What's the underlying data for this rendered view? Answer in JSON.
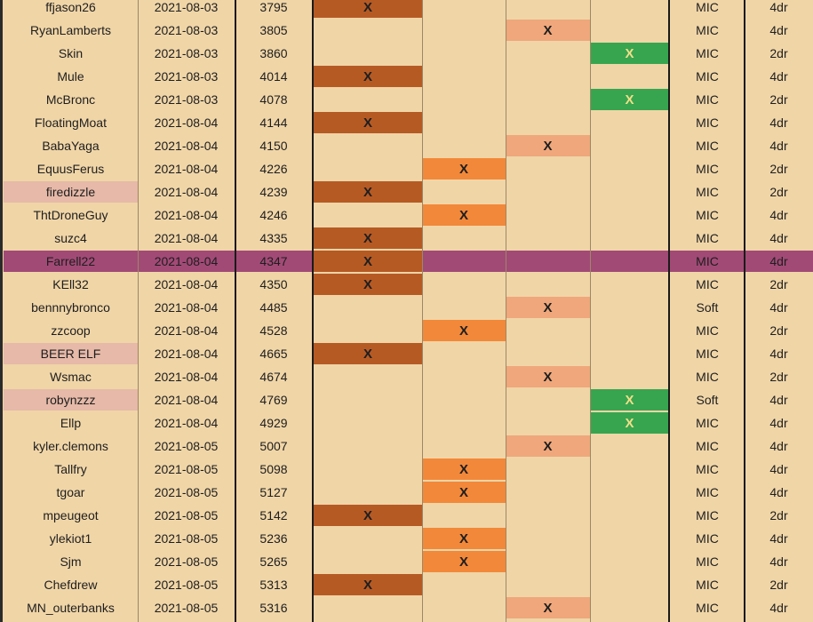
{
  "colors": {
    "row_bg": "#f0d5a7",
    "name_highlight": "#e6b9a8",
    "dark_orange": "#b65a24",
    "orange": "#f28839",
    "light_orange": "#efa77b",
    "green": "#37a54f",
    "green_mark": "#f1df8a",
    "selected_row": "#a24a76"
  },
  "rows": [
    {
      "name": "ffjason26",
      "date": "2021-08-03",
      "num": "3795",
      "col": 1,
      "type": "MIC",
      "doors": "4dr"
    },
    {
      "name": "RyanLamberts",
      "date": "2021-08-03",
      "num": "3805",
      "col": 3,
      "type": "MIC",
      "doors": "4dr"
    },
    {
      "name": "Skin",
      "date": "2021-08-03",
      "num": "3860",
      "col": 4,
      "type": "MIC",
      "doors": "2dr"
    },
    {
      "name": "Mule",
      "date": "2021-08-03",
      "num": "4014",
      "col": 1,
      "type": "MIC",
      "doors": "4dr"
    },
    {
      "name": "McBronc",
      "date": "2021-08-03",
      "num": "4078",
      "col": 4,
      "type": "MIC",
      "doors": "2dr"
    },
    {
      "name": "FloatingMoat",
      "date": "2021-08-04",
      "num": "4144",
      "col": 1,
      "type": "MIC",
      "doors": "4dr"
    },
    {
      "name": "BabaYaga",
      "date": "2021-08-04",
      "num": "4150",
      "col": 3,
      "type": "MIC",
      "doors": "4dr"
    },
    {
      "name": "EquusFerus",
      "date": "2021-08-04",
      "num": "4226",
      "col": 2,
      "type": "MIC",
      "doors": "2dr"
    },
    {
      "name": "firedizzle",
      "date": "2021-08-04",
      "num": "4239",
      "col": 1,
      "type": "MIC",
      "doors": "2dr",
      "hl": true
    },
    {
      "name": "ThtDroneGuy",
      "date": "2021-08-04",
      "num": "4246",
      "col": 2,
      "type": "MIC",
      "doors": "4dr"
    },
    {
      "name": "suzc4",
      "date": "2021-08-04",
      "num": "4335",
      "col": 1,
      "type": "MIC",
      "doors": "4dr"
    },
    {
      "name": "Farrell22",
      "date": "2021-08-04",
      "num": "4347",
      "col": 1,
      "type": "MIC",
      "doors": "4dr",
      "selected": true
    },
    {
      "name": "KEll32",
      "date": "2021-08-04",
      "num": "4350",
      "col": 1,
      "type": "MIC",
      "doors": "2dr"
    },
    {
      "name": "bennnybronco",
      "date": "2021-08-04",
      "num": "4485",
      "col": 3,
      "type": "Soft",
      "doors": "4dr"
    },
    {
      "name": "zzcoop",
      "date": "2021-08-04",
      "num": "4528",
      "col": 2,
      "type": "MIC",
      "doors": "2dr"
    },
    {
      "name": "BEER ELF",
      "date": "2021-08-04",
      "num": "4665",
      "col": 1,
      "type": "MIC",
      "doors": "4dr",
      "hl": true
    },
    {
      "name": "Wsmac",
      "date": "2021-08-04",
      "num": "4674",
      "col": 3,
      "type": "MIC",
      "doors": "2dr"
    },
    {
      "name": "robynzzz",
      "date": "2021-08-04",
      "num": "4769",
      "col": 4,
      "type": "Soft",
      "doors": "4dr",
      "hl": true
    },
    {
      "name": "Ellp",
      "date": "2021-08-04",
      "num": "4929",
      "col": 4,
      "type": "MIC",
      "doors": "4dr"
    },
    {
      "name": "kyler.clemons",
      "date": "2021-08-05",
      "num": "5007",
      "col": 3,
      "type": "MIC",
      "doors": "4dr"
    },
    {
      "name": "Tallfry",
      "date": "2021-08-05",
      "num": "5098",
      "col": 2,
      "type": "MIC",
      "doors": "4dr"
    },
    {
      "name": "tgoar",
      "date": "2021-08-05",
      "num": "5127",
      "col": 2,
      "type": "MIC",
      "doors": "4dr"
    },
    {
      "name": "mpeugeot",
      "date": "2021-08-05",
      "num": "5142",
      "col": 1,
      "type": "MIC",
      "doors": "2dr"
    },
    {
      "name": "ylekiot1",
      "date": "2021-08-05",
      "num": "5236",
      "col": 2,
      "type": "MIC",
      "doors": "4dr"
    },
    {
      "name": "Sjm",
      "date": "2021-08-05",
      "num": "5265",
      "col": 2,
      "type": "MIC",
      "doors": "4dr"
    },
    {
      "name": "Chefdrew",
      "date": "2021-08-05",
      "num": "5313",
      "col": 1,
      "type": "MIC",
      "doors": "2dr"
    },
    {
      "name": "MN_outerbanks",
      "date": "2021-08-05",
      "num": "5316",
      "col": 3,
      "type": "MIC",
      "doors": "4dr"
    }
  ],
  "mark_text": "X"
}
